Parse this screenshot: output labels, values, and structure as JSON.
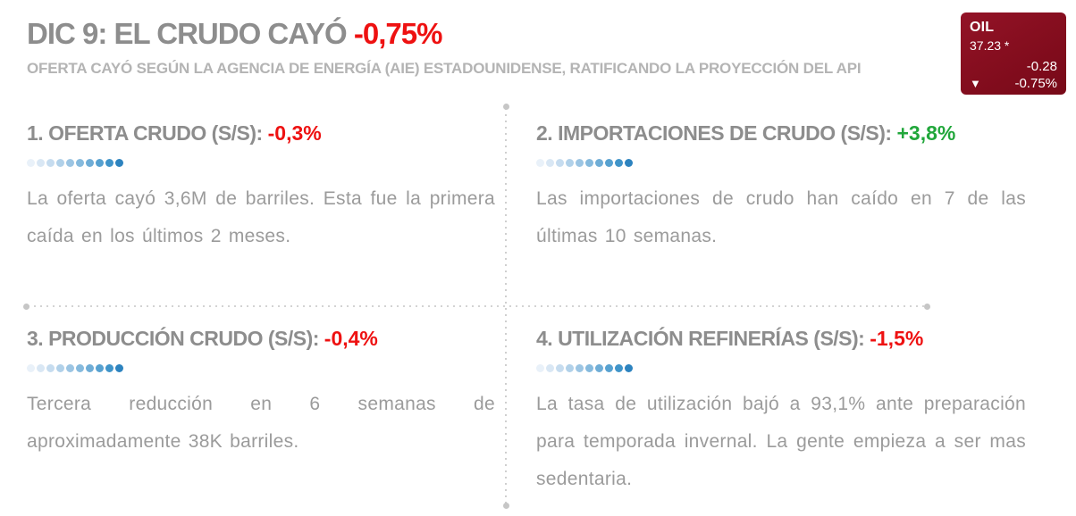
{
  "header": {
    "title_text": "DIC 9: EL CRUDO CAYÓ",
    "title_change": "-0,75%",
    "subtitle": "OFERTA CAYÓ SEGÚN LA AGENCIA DE ENERGÍA (AIE) ESTADOUNIDENSE, RATIFICANDO LA PROYECCIÓN DEL API"
  },
  "ticker": {
    "symbol": "OIL",
    "price": "37.23 *",
    "change": "-0.28",
    "change_pct": "-0.75%",
    "down_icon": "▼",
    "bg_color": "#860e1f"
  },
  "colors": {
    "negative_red": "#ee1111",
    "positive_green": "#21a73b",
    "heading_gray": "#8d8d8d",
    "subtitle_gray": "#b4b4b4",
    "body_gray": "#9b9b9b",
    "divider_gray": "#cfcfcf",
    "ticker_maroon": "#860e1f"
  },
  "indicator_dots": {
    "count": 10,
    "colors": [
      "#e9f1f9",
      "#d9e7f4",
      "#c6dcef",
      "#b1d1e9",
      "#9cc5e3",
      "#86badd",
      "#6fadd6",
      "#57a1d0",
      "#4094c9",
      "#2d83bf"
    ]
  },
  "sections": [
    {
      "title": "1. OFERTA CRUDO (S/S):",
      "change": "-0,3%",
      "change_color": "#ee1111",
      "body": "La oferta cayó 3,6M de barriles. Esta fue la primera caída en los últimos 2 meses."
    },
    {
      "title": "2. IMPORTACIONES DE CRUDO (S/S):",
      "change": "+3,8%",
      "change_color": "#21a73b",
      "body": "Las importaciones de crudo han caído en 7 de las últimas 10 semanas."
    },
    {
      "title": "3. PRODUCCIÓN CRUDO (S/S):",
      "change": "-0,4%",
      "change_color": "#ee1111",
      "body": "Tercera reducción en 6 semanas de aproximadamente 38K barriles."
    },
    {
      "title": "4. UTILIZACIÓN REFINERÍAS (S/S):",
      "change": "-1,5%",
      "change_color": "#ee1111",
      "body": "La tasa de utilización bajó a 93,1% ante preparación para temporada invernal. La gente empieza a ser mas sedentaria."
    }
  ]
}
